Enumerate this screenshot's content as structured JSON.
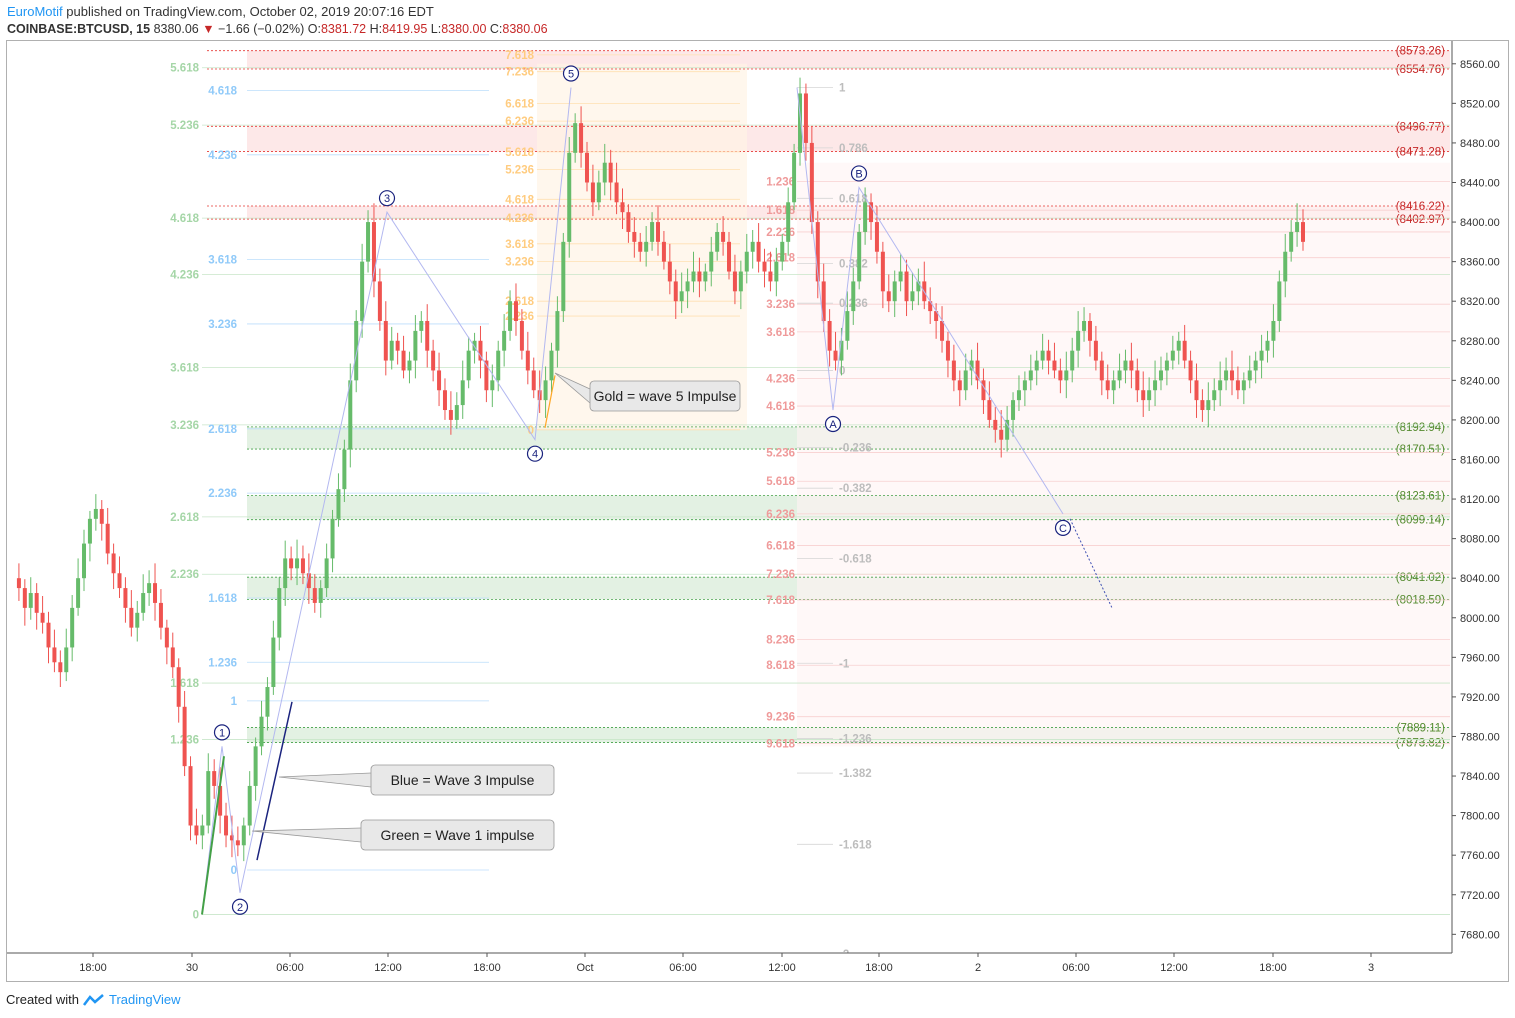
{
  "header": {
    "author": "EuroMotif",
    "published_text": "published on TradingView.com, October 02, 2019 20:07:16 EDT",
    "symbol": "COINBASE:BTCUSD, 15",
    "last_price": "8380.06",
    "change_arrow": "▼",
    "change": "−1.66 (−0.02%)",
    "o_label": "O:",
    "o_value": "8381.72",
    "h_label": "H:",
    "h_value": "8419.95",
    "l_label": "L:",
    "l_value": "8380.00",
    "c_label": "C:",
    "c_value": "8380.06"
  },
  "footer": {
    "created_with": "Created with",
    "brand": "TradingView"
  },
  "colors": {
    "up": "#66bb6a",
    "down": "#ef5350",
    "blue_fib": "#90caf9",
    "green_fib": "#81c784",
    "gold_fib": "#ffa726",
    "red_fib": "#ef9a9a",
    "gray_fib": "#bdbdbd"
  },
  "chart_data": {
    "type": "candlestick",
    "symbol": "COINBASE:BTCUSD",
    "timeframe": "15",
    "ylim": [
      7650,
      8580
    ],
    "y_ticks": [
      "8560.00",
      "8520.00",
      "8480.00",
      "8440.00",
      "8400.00",
      "8360.00",
      "8320.00",
      "8280.00",
      "8240.00",
      "8200.00",
      "8160.00",
      "8120.00",
      "8080.00",
      "8040.00",
      "8000.00",
      "7960.00",
      "7920.00",
      "7880.00",
      "7840.00",
      "7800.00",
      "7760.00",
      "7720.00",
      "7680.00"
    ],
    "x_ticks": [
      "18:00",
      "30",
      "06:00",
      "12:00",
      "18:00",
      "Oct",
      "06:00",
      "12:00",
      "18:00",
      "2",
      "06:00",
      "12:00",
      "18:00",
      "3"
    ],
    "current_price": 8380.06,
    "candle_path": [
      8040,
      8030,
      8010,
      8025,
      8005,
      7995,
      7970,
      7955,
      7945,
      7970,
      8010,
      8040,
      8075,
      8100,
      8110,
      8095,
      8065,
      8045,
      8030,
      8010,
      7990,
      8005,
      8025,
      8035,
      8015,
      7990,
      7970,
      7950,
      7910,
      7850,
      7790,
      7780,
      7790,
      7845,
      7830,
      7800,
      7780,
      7775,
      7770,
      7790,
      7830,
      7870,
      7900,
      7930,
      7980,
      8030,
      8060,
      8050,
      8060,
      8045,
      8030,
      8015,
      8030,
      8060,
      8100,
      8130,
      8170,
      8240,
      8300,
      8360,
      8400,
      8340,
      8300,
      8260,
      8280,
      8270,
      8250,
      8260,
      8290,
      8300,
      8270,
      8250,
      8230,
      8210,
      8200,
      8215,
      8240,
      8270,
      8280,
      8260,
      8230,
      8240,
      8270,
      8290,
      8320,
      8300,
      8270,
      8250,
      8230,
      8220,
      8240,
      8270,
      8310,
      8380,
      8470,
      8500,
      8470,
      8440,
      8420,
      8440,
      8460,
      8440,
      8420,
      8410,
      8390,
      8380,
      8370,
      8380,
      8400,
      8380,
      8360,
      8340,
      8320,
      8330,
      8340,
      8350,
      8340,
      8350,
      8370,
      8390,
      8380,
      8350,
      8330,
      8350,
      8370,
      8380,
      8360,
      8350,
      8340,
      8360,
      8380,
      8420,
      8470,
      8530,
      8480,
      8400,
      8340,
      8300,
      8270,
      8260,
      8280,
      8310,
      8340,
      8390,
      8420,
      8400,
      8370,
      8330,
      8320,
      8340,
      8350,
      8320,
      8330,
      8340,
      8320,
      8310,
      8300,
      8280,
      8260,
      8240,
      8230,
      8250,
      8260,
      8240,
      8220,
      8200,
      8190,
      8180,
      8200,
      8220,
      8230,
      8240,
      8250,
      8260,
      8270,
      8260,
      8250,
      8240,
      8250,
      8270,
      8290,
      8300,
      8280,
      8260,
      8240,
      8230,
      8240,
      8250,
      8260,
      8250,
      8230,
      8220,
      8230,
      8240,
      8250,
      8260,
      8270,
      8280,
      8260,
      8240,
      8220,
      8210,
      8220,
      8230,
      8240,
      8250,
      8240,
      8230,
      8240,
      8250,
      8260,
      8270,
      8280,
      8300,
      8340,
      8370,
      8390,
      8400,
      8380
    ],
    "price_levels": [
      {
        "label": "(8573.26)",
        "value": 8573.26
      },
      {
        "label": "(8554.76)",
        "value": 8554.76
      },
      {
        "label": "(8496.77)",
        "value": 8496.77
      },
      {
        "label": "(8471.28)",
        "value": 8471.28
      },
      {
        "label": "(8416.22)",
        "value": 8416.22
      },
      {
        "label": "(8402.97)",
        "value": 8402.97
      },
      {
        "label": "(8192.94)",
        "value": 8192.94
      },
      {
        "label": "(8170.51)",
        "value": 8170.51
      },
      {
        "label": "(8123.61)",
        "value": 8123.61
      },
      {
        "label": "(8099.14)",
        "value": 8099.14
      },
      {
        "label": "(8041.02)",
        "value": 8041.02
      },
      {
        "label": "(8018.59)",
        "value": 8018.59
      },
      {
        "label": "(7889.11)",
        "value": 7889.11
      },
      {
        "label": "(7873.82)",
        "value": 7873.82
      }
    ],
    "fib_green": [
      {
        "ratio": "0",
        "value": 7700
      },
      {
        "ratio": "1.236",
        "value": 7877
      },
      {
        "ratio": "1.618",
        "value": 7934
      },
      {
        "ratio": "2.236",
        "value": 8044
      },
      {
        "ratio": "2.618",
        "value": 8102
      },
      {
        "ratio": "3.236",
        "value": 8195
      },
      {
        "ratio": "3.618",
        "value": 8253
      },
      {
        "ratio": "4.236",
        "value": 8347
      },
      {
        "ratio": "4.618",
        "value": 8404
      },
      {
        "ratio": "5.236",
        "value": 8498
      },
      {
        "ratio": "5.618",
        "value": 8556
      }
    ],
    "fib_blue": [
      {
        "ratio": "0",
        "value": 7745
      },
      {
        "ratio": "1",
        "value": 7916
      },
      {
        "ratio": "1.236",
        "value": 7955
      },
      {
        "ratio": "1.618",
        "value": 8020
      },
      {
        "ratio": "2.236",
        "value": 8126
      },
      {
        "ratio": "2.618",
        "value": 8191
      },
      {
        "ratio": "3.236",
        "value": 8297
      },
      {
        "ratio": "3.618",
        "value": 8362
      },
      {
        "ratio": "4.236",
        "value": 8468
      },
      {
        "ratio": "4.618",
        "value": 8533
      }
    ],
    "fib_gold": [
      {
        "ratio": "0",
        "value": 8190
      },
      {
        "ratio": "2.618",
        "value": 8320
      },
      {
        "ratio": "2.236",
        "value": 8305
      },
      {
        "ratio": "3.236",
        "value": 8360
      },
      {
        "ratio": "3.618",
        "value": 8378
      },
      {
        "ratio": "4.236",
        "value": 8404
      },
      {
        "ratio": "4.618",
        "value": 8423
      },
      {
        "ratio": "5.236",
        "value": 8453
      },
      {
        "ratio": "5.618",
        "value": 8471
      },
      {
        "ratio": "6.236",
        "value": 8502
      },
      {
        "ratio": "6.618",
        "value": 8520
      },
      {
        "ratio": "7.236",
        "value": 8552
      },
      {
        "ratio": "7.618",
        "value": 8569
      }
    ],
    "fib_red": [
      {
        "ratio": "1.236",
        "value": 8441
      },
      {
        "ratio": "1.618",
        "value": 8412
      },
      {
        "ratio": "2.236",
        "value": 8390
      },
      {
        "ratio": "2.618",
        "value": 8364
      },
      {
        "ratio": "3.236",
        "value": 8317
      },
      {
        "ratio": "3.618",
        "value": 8289
      },
      {
        "ratio": "4.236",
        "value": 8242
      },
      {
        "ratio": "4.618",
        "value": 8214
      },
      {
        "ratio": "5.236",
        "value": 8167
      },
      {
        "ratio": "5.618",
        "value": 8138
      },
      {
        "ratio": "6.236",
        "value": 8105
      },
      {
        "ratio": "6.618",
        "value": 8073
      },
      {
        "ratio": "7.236",
        "value": 8044
      },
      {
        "ratio": "7.618",
        "value": 8018
      },
      {
        "ratio": "8.236",
        "value": 7978
      },
      {
        "ratio": "8.618",
        "value": 7952
      },
      {
        "ratio": "9.236",
        "value": 7900
      },
      {
        "ratio": "9.618",
        "value": 7873
      }
    ],
    "fib_gray": [
      {
        "ratio": "1",
        "value": 8536
      },
      {
        "ratio": "0.786",
        "value": 8475
      },
      {
        "ratio": "0.618",
        "value": 8424
      },
      {
        "ratio": "0.382",
        "value": 8358
      },
      {
        "ratio": "0.236",
        "value": 8318
      },
      {
        "ratio": "0",
        "value": 8250
      },
      {
        "ratio": "-0.236",
        "value": 8172
      },
      {
        "ratio": "-0.382",
        "value": 8131
      },
      {
        "ratio": "-0.618",
        "value": 8060
      },
      {
        "ratio": "-1",
        "value": 7954
      },
      {
        "ratio": "-1.236",
        "value": 7878
      },
      {
        "ratio": "-1.382",
        "value": 7843
      },
      {
        "ratio": "-1.618",
        "value": 7771
      },
      {
        "ratio": "-2",
        "value": 7660
      }
    ],
    "waves": [
      {
        "label": "1",
        "value": 7870
      },
      {
        "label": "2",
        "value": 7722
      },
      {
        "label": "3",
        "value": 8410
      },
      {
        "label": "4",
        "value": 8180
      },
      {
        "label": "5",
        "value": 8536
      },
      {
        "label": "A",
        "value": 8210
      },
      {
        "label": "B",
        "value": 8435
      },
      {
        "label": "C",
        "value": 8105
      }
    ],
    "annotations": [
      {
        "text": "Gold = wave 5 Impulse"
      },
      {
        "text": "Blue = Wave 3 Impulse"
      },
      {
        "text": "Green = Wave 1 impulse"
      }
    ]
  }
}
